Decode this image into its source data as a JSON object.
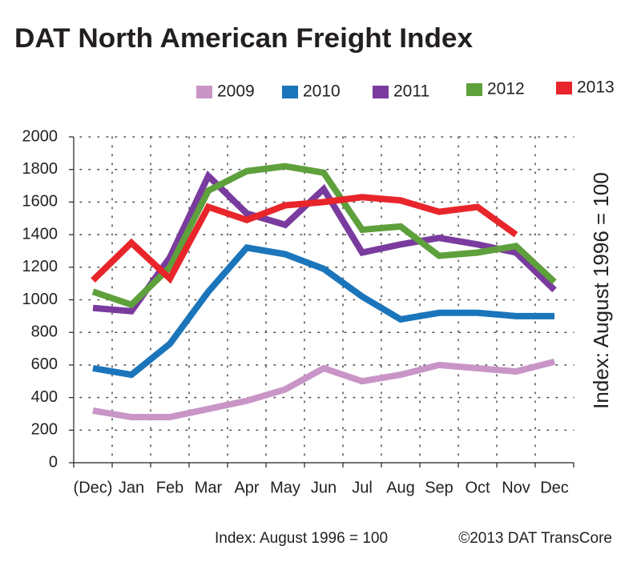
{
  "chart_data": {
    "type": "line",
    "title": "DAT North American Freight Index",
    "y_label": "Index: August 1996 = 100",
    "footnote": "Index: August 1996 = 100",
    "credit": "©2013 DAT TransCore",
    "categories": [
      "(Dec)",
      "Jan",
      "Feb",
      "Mar",
      "Apr",
      "May",
      "Jun",
      "Jul",
      "Aug",
      "Sep",
      "Oct",
      "Nov",
      "Dec"
    ],
    "series": [
      {
        "name": "2009",
        "color": "#c995c7",
        "values": [
          320,
          280,
          280,
          330,
          380,
          450,
          580,
          500,
          540,
          600,
          580,
          560,
          620
        ]
      },
      {
        "name": "2010",
        "color": "#1b75bb",
        "values": [
          580,
          540,
          730,
          1050,
          1320,
          1280,
          1190,
          1020,
          880,
          920,
          920,
          900,
          900
        ]
      },
      {
        "name": "2011",
        "color": "#7a3b9e",
        "values": [
          950,
          930,
          1260,
          1760,
          1530,
          1460,
          1680,
          1290,
          1340,
          1380,
          1340,
          1290,
          1060
        ]
      },
      {
        "name": "2012",
        "color": "#5ea03c",
        "values": [
          1050,
          970,
          1200,
          1670,
          1790,
          1820,
          1780,
          1430,
          1450,
          1270,
          1290,
          1330,
          1110
        ]
      },
      {
        "name": "2013",
        "color": "#e8252a",
        "values": [
          1120,
          1350,
          1130,
          1570,
          1490,
          1580,
          1600,
          1630,
          1610,
          1540,
          1570,
          1400,
          null
        ]
      }
    ],
    "ylim": [
      0,
      2000
    ],
    "yticks": [
      0,
      200,
      400,
      600,
      800,
      1000,
      1200,
      1400,
      1600,
      1800,
      2000
    ],
    "grid": true
  }
}
